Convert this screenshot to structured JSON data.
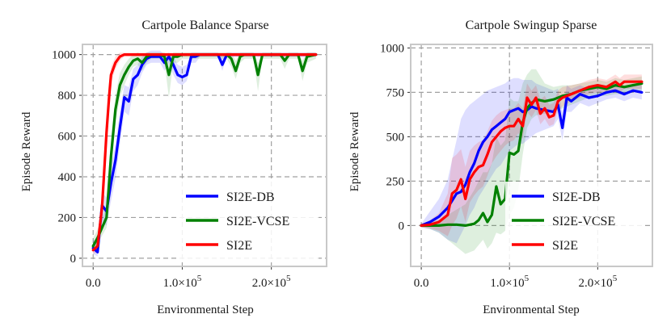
{
  "chart_data": [
    {
      "type": "line",
      "title": "Cartpole Balance Sparse",
      "xlabel": "Environmental Step",
      "ylabel": "Episode Reward",
      "xlim": [
        -12000,
        262000
      ],
      "ylim": [
        -40,
        1050
      ],
      "xticks": [
        0,
        100000,
        200000
      ],
      "xtick_labels": [
        {
          "mant": "0.0",
          "exp": ""
        },
        {
          "mant": "1.0×10",
          "exp": "5"
        },
        {
          "mant": "2.0×10",
          "exp": "5"
        }
      ],
      "yticks": [
        0,
        200,
        400,
        600,
        800,
        1000
      ],
      "ytick_labels": [
        "0",
        "200",
        "400",
        "600",
        "800",
        "1000"
      ],
      "legend": "lower-right",
      "series": [
        {
          "name": "SI2E-DB",
          "color": "#0000ff",
          "x": [
            0,
            5000,
            10000,
            15000,
            20000,
            25000,
            30000,
            35000,
            40000,
            45000,
            50000,
            55000,
            60000,
            65000,
            70000,
            75000,
            80000,
            85000,
            90000,
            95000,
            100000,
            105000,
            110000,
            115000,
            120000,
            125000,
            130000,
            135000,
            140000,
            145000,
            150000,
            155000,
            160000,
            170000,
            180000,
            190000,
            200000,
            210000,
            220000,
            230000,
            240000,
            250000
          ],
          "y": [
            50,
            30,
            260,
            230,
            370,
            480,
            640,
            790,
            770,
            880,
            900,
            950,
            980,
            990,
            990,
            990,
            960,
            990,
            950,
            900,
            890,
            900,
            990,
            990,
            1000,
            1000,
            1000,
            1000,
            1000,
            950,
            1000,
            1000,
            1000,
            1000,
            1000,
            1000,
            1000,
            1000,
            1000,
            1000,
            1000,
            1000
          ],
          "lo": [
            20,
            10,
            180,
            160,
            280,
            390,
            560,
            720,
            700,
            820,
            850,
            910,
            950,
            960,
            960,
            960,
            920,
            960,
            900,
            860,
            850,
            870,
            960,
            960,
            990,
            990,
            990,
            990,
            990,
            920,
            990,
            990,
            990,
            990,
            990,
            990,
            990,
            990,
            990,
            990,
            990,
            990
          ],
          "hi": [
            90,
            80,
            320,
            300,
            450,
            560,
            720,
            850,
            840,
            930,
            950,
            990,
            1010,
            1020,
            1020,
            1020,
            1000,
            1010,
            990,
            950,
            940,
            950,
            1010,
            1010,
            1010,
            1010,
            1010,
            1010,
            1010,
            990,
            1010,
            1010,
            1010,
            1010,
            1010,
            1010,
            1010,
            1010,
            1010,
            1010,
            1010,
            1010
          ]
        },
        {
          "name": "SI2E-VCSE",
          "color": "#008000",
          "x": [
            0,
            5000,
            10000,
            15000,
            20000,
            25000,
            30000,
            35000,
            40000,
            45000,
            50000,
            55000,
            60000,
            65000,
            70000,
            75000,
            80000,
            85000,
            90000,
            95000,
            100000,
            110000,
            120000,
            130000,
            140000,
            150000,
            155000,
            160000,
            165000,
            170000,
            180000,
            185000,
            190000,
            200000,
            210000,
            215000,
            220000,
            230000,
            235000,
            240000,
            250000
          ],
          "y": [
            60,
            100,
            150,
            200,
            500,
            730,
            850,
            900,
            940,
            970,
            980,
            960,
            990,
            1000,
            1000,
            1000,
            990,
            900,
            990,
            990,
            1000,
            1000,
            1000,
            1000,
            1000,
            1000,
            980,
            920,
            990,
            1000,
            1000,
            900,
            1000,
            1000,
            1000,
            970,
            1000,
            1000,
            920,
            990,
            1000
          ],
          "lo": [
            30,
            70,
            110,
            150,
            420,
            660,
            790,
            850,
            900,
            940,
            950,
            920,
            960,
            980,
            980,
            980,
            960,
            790,
            960,
            960,
            980,
            980,
            980,
            980,
            980,
            980,
            940,
            880,
            960,
            980,
            980,
            820,
            980,
            980,
            980,
            930,
            980,
            980,
            870,
            960,
            980
          ],
          "hi": [
            100,
            140,
            200,
            260,
            580,
            800,
            910,
            950,
            980,
            1000,
            1010,
            1000,
            1010,
            1010,
            1010,
            1010,
            1010,
            980,
            1010,
            1010,
            1010,
            1010,
            1010,
            1010,
            1010,
            1010,
            1010,
            970,
            1010,
            1010,
            1010,
            960,
            1010,
            1010,
            1010,
            1000,
            1010,
            1010,
            970,
            1010,
            1010
          ]
        },
        {
          "name": "SI2E",
          "color": "#ff0000",
          "x": [
            0,
            5000,
            10000,
            12000,
            15000,
            18000,
            20000,
            25000,
            30000,
            35000,
            40000,
            50000,
            60000,
            100000,
            150000,
            200000,
            250000
          ],
          "y": [
            40,
            60,
            250,
            400,
            620,
            800,
            900,
            960,
            990,
            1000,
            1000,
            1000,
            1000,
            1000,
            1000,
            1000,
            1000
          ],
          "lo": [
            20,
            30,
            200,
            340,
            560,
            750,
            860,
            930,
            970,
            990,
            990,
            990,
            990,
            990,
            990,
            990,
            990
          ],
          "hi": [
            70,
            100,
            300,
            460,
            680,
            850,
            940,
            990,
            1010,
            1010,
            1010,
            1010,
            1010,
            1010,
            1010,
            1010,
            1010
          ]
        }
      ]
    },
    {
      "type": "line",
      "title": "Cartpole Swingup Sparse",
      "xlabel": "Environmental Step",
      "ylabel": "Episode Reward",
      "xlim": [
        -12000,
        262000
      ],
      "ylim": [
        -230,
        1020
      ],
      "xticks": [
        0,
        100000,
        200000
      ],
      "xtick_labels": [
        {
          "mant": "0.0",
          "exp": ""
        },
        {
          "mant": "1.0×10",
          "exp": "5"
        },
        {
          "mant": "2.0×10",
          "exp": "5"
        }
      ],
      "yticks": [
        0,
        250,
        500,
        750,
        1000
      ],
      "ytick_labels": [
        "0",
        "250",
        "500",
        "750",
        "1000"
      ],
      "legend": "lower-right",
      "series": [
        {
          "name": "SI2E-DB",
          "color": "#0000ff",
          "x": [
            0,
            10000,
            20000,
            30000,
            40000,
            45000,
            50000,
            55000,
            60000,
            65000,
            70000,
            75000,
            80000,
            85000,
            90000,
            95000,
            100000,
            105000,
            110000,
            115000,
            120000,
            125000,
            130000,
            140000,
            150000,
            155000,
            160000,
            165000,
            170000,
            180000,
            190000,
            200000,
            210000,
            220000,
            230000,
            240000,
            250000
          ],
          "y": [
            0,
            20,
            50,
            100,
            180,
            190,
            230,
            300,
            350,
            420,
            470,
            500,
            540,
            560,
            580,
            600,
            640,
            650,
            660,
            640,
            650,
            670,
            660,
            650,
            640,
            680,
            550,
            720,
            700,
            740,
            720,
            730,
            750,
            760,
            740,
            760,
            750
          ],
          "lo": [
            -10,
            -20,
            -40,
            -80,
            -100,
            -50,
            0,
            60,
            100,
            160,
            200,
            240,
            280,
            320,
            340,
            380,
            420,
            440,
            460,
            460,
            480,
            500,
            520,
            540,
            560,
            600,
            480,
            640,
            640,
            690,
            670,
            690,
            710,
            720,
            700,
            720,
            710
          ],
          "hi": [
            10,
            80,
            150,
            260,
            480,
            600,
            650,
            680,
            700,
            720,
            740,
            760,
            770,
            780,
            790,
            800,
            820,
            830,
            830,
            820,
            820,
            820,
            800,
            780,
            760,
            770,
            640,
            790,
            770,
            790,
            770,
            780,
            790,
            800,
            780,
            800,
            790
          ]
        },
        {
          "name": "SI2E-VCSE",
          "color": "#008000",
          "x": [
            0,
            10000,
            20000,
            30000,
            40000,
            50000,
            60000,
            65000,
            70000,
            75000,
            80000,
            85000,
            90000,
            95000,
            100000,
            105000,
            110000,
            115000,
            120000,
            125000,
            130000,
            140000,
            150000,
            160000,
            170000,
            180000,
            190000,
            200000,
            210000,
            220000,
            230000,
            240000,
            250000
          ],
          "y": [
            0,
            0,
            0,
            5,
            5,
            0,
            10,
            30,
            70,
            20,
            60,
            220,
            120,
            150,
            410,
            400,
            420,
            580,
            660,
            690,
            710,
            700,
            710,
            730,
            740,
            760,
            770,
            780,
            770,
            790,
            780,
            790,
            800
          ],
          "lo": [
            -10,
            -20,
            -40,
            -80,
            -120,
            -160,
            -140,
            -110,
            -80,
            -130,
            -100,
            -40,
            -50,
            -30,
            60,
            100,
            200,
            400,
            550,
            600,
            620,
            630,
            640,
            660,
            680,
            700,
            720,
            730,
            730,
            740,
            740,
            750,
            760
          ],
          "hi": [
            10,
            20,
            30,
            60,
            90,
            120,
            200,
            250,
            300,
            300,
            350,
            500,
            450,
            480,
            720,
            700,
            700,
            800,
            850,
            880,
            880,
            800,
            780,
            790,
            790,
            800,
            810,
            820,
            810,
            830,
            820,
            830,
            840
          ]
        },
        {
          "name": "SI2E",
          "color": "#ff0000",
          "x": [
            0,
            10000,
            20000,
            30000,
            35000,
            40000,
            45000,
            50000,
            55000,
            60000,
            65000,
            70000,
            75000,
            80000,
            85000,
            90000,
            95000,
            100000,
            105000,
            110000,
            115000,
            120000,
            125000,
            130000,
            135000,
            140000,
            145000,
            150000,
            155000,
            160000,
            170000,
            180000,
            190000,
            200000,
            210000,
            220000,
            225000,
            230000,
            240000,
            250000
          ],
          "y": [
            0,
            5,
            20,
            60,
            180,
            200,
            260,
            150,
            260,
            300,
            330,
            340,
            400,
            470,
            500,
            530,
            550,
            560,
            560,
            600,
            560,
            720,
            680,
            720,
            630,
            660,
            610,
            620,
            700,
            720,
            740,
            760,
            780,
            790,
            780,
            810,
            790,
            810,
            810,
            810
          ],
          "lo": [
            -10,
            -15,
            -30,
            -60,
            0,
            40,
            110,
            20,
            130,
            170,
            200,
            220,
            280,
            350,
            390,
            420,
            450,
            470,
            480,
            520,
            490,
            640,
            610,
            650,
            570,
            600,
            560,
            570,
            650,
            670,
            700,
            720,
            740,
            750,
            740,
            770,
            750,
            770,
            770,
            770
          ],
          "hi": [
            10,
            30,
            70,
            180,
            380,
            400,
            430,
            330,
            420,
            450,
            470,
            480,
            530,
            590,
            620,
            640,
            650,
            660,
            660,
            690,
            660,
            800,
            760,
            790,
            710,
            730,
            680,
            690,
            760,
            780,
            790,
            800,
            820,
            830,
            820,
            850,
            830,
            850,
            850,
            850
          ]
        }
      ]
    }
  ]
}
